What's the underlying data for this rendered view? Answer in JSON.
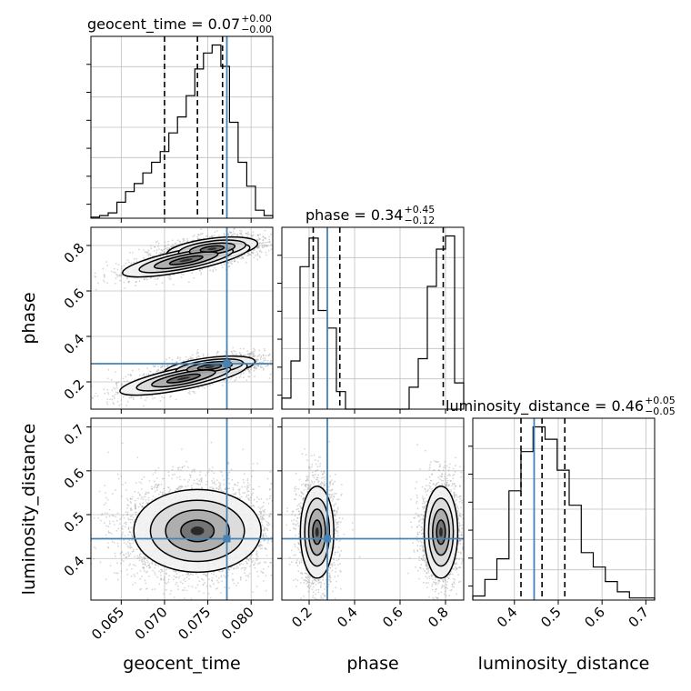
{
  "chart_data": {
    "type": "corner",
    "parameters": [
      "geocent_time",
      "phase",
      "luminosity_distance"
    ],
    "truths": {
      "geocent_time": 0.0772,
      "phase": 0.28,
      "luminosity_distance": 0.445
    },
    "colors": {
      "hist": "#000000",
      "truth": "#4682b4",
      "grid": "#c0c0c0",
      "scatter": "#8a8a8a",
      "dashed": "#000000"
    },
    "grid": true,
    "titles": [
      {
        "param": "geocent_time",
        "label": "geocent_time = 0.07",
        "sup": "+0.00",
        "sub": "−0.00"
      },
      {
        "param": "phase",
        "label": "phase = 0.34",
        "sup": "+0.45",
        "sub": "−0.12"
      },
      {
        "param": "luminosity_distance",
        "label": "luminosity_distance = 0.46",
        "sup": "+0.05",
        "sub": "−0.05"
      }
    ],
    "ranges": {
      "geocent_time": [
        0.0615,
        0.0825
      ],
      "phase": [
        0.08,
        0.88
      ],
      "luminosity_distance": [
        0.305,
        0.72
      ]
    },
    "ticks": {
      "geocent_time": [
        0.065,
        0.07,
        0.075,
        0.08
      ],
      "phase": [
        0.2,
        0.4,
        0.6,
        0.8
      ],
      "luminosity_distance": [
        0.3,
        0.4,
        0.5,
        0.6,
        0.7
      ]
    },
    "tick_labels": {
      "geocent_time": [
        "0.065",
        "0.070",
        "0.075",
        "0.080"
      ],
      "phase": [
        "0.2",
        "0.4",
        "0.6",
        "0.8"
      ],
      "luminosity_distance": [
        "0.3",
        "0.4",
        "0.5",
        "0.6",
        "0.7"
      ]
    },
    "quantiles": {
      "geocent_time": [
        0.07,
        0.0738,
        0.0767
      ],
      "phase": [
        0.218,
        0.335,
        0.79
      ],
      "luminosity_distance": [
        0.415,
        0.463,
        0.515
      ]
    },
    "histograms": {
      "geocent_time": {
        "edges": [
          0.0615,
          0.0625,
          0.0635,
          0.0645,
          0.0655,
          0.0665,
          0.0675,
          0.0685,
          0.0695,
          0.0705,
          0.0715,
          0.0725,
          0.0735,
          0.0745,
          0.0755,
          0.0765,
          0.0775,
          0.0785,
          0.0795,
          0.0805,
          0.0815,
          0.0825
        ],
        "counts": [
          0.4,
          1,
          2,
          6,
          10,
          13,
          17,
          21,
          25,
          32,
          38,
          46,
          56,
          62,
          65,
          57,
          36,
          21,
          12,
          3,
          1
        ]
      },
      "phase": {
        "edges": [
          0.08,
          0.12,
          0.16,
          0.2,
          0.24,
          0.28,
          0.32,
          0.36,
          0.4,
          0.44,
          0.48,
          0.52,
          0.56,
          0.6,
          0.64,
          0.68,
          0.72,
          0.76,
          0.8,
          0.84,
          0.88
        ],
        "counts": [
          5,
          22,
          65,
          78,
          45,
          37,
          8,
          0,
          0,
          0,
          0,
          0,
          0,
          0,
          10,
          23,
          56,
          73,
          79,
          12
        ]
      },
      "luminosity_distance": {
        "edges": [
          0.305,
          0.3325,
          0.36,
          0.3875,
          0.415,
          0.4425,
          0.47,
          0.4975,
          0.525,
          0.5525,
          0.58,
          0.6075,
          0.635,
          0.6625,
          0.69,
          0.72
        ],
        "counts": [
          2,
          10,
          20,
          53,
          72,
          84,
          78,
          63,
          46,
          23,
          16,
          9,
          4,
          1,
          1
        ]
      }
    },
    "blobs": {
      "phase_vs_geocent_time": [
        {
          "cx": 0.0752,
          "cy": 0.265,
          "sx": 0.0025,
          "sy": 0.023,
          "rho": 0.5,
          "n": 1400
        },
        {
          "cx": 0.0722,
          "cy": 0.215,
          "sx": 0.0035,
          "sy": 0.035,
          "rho": 0.75,
          "n": 900
        },
        {
          "cx": 0.0755,
          "cy": 0.785,
          "sx": 0.0025,
          "sy": 0.025,
          "rho": 0.45,
          "n": 1400
        },
        {
          "cx": 0.0725,
          "cy": 0.735,
          "sx": 0.0035,
          "sy": 0.035,
          "rho": 0.75,
          "n": 900
        }
      ],
      "luminosity_distance_vs_geocent_time": [
        {
          "cx": 0.0738,
          "cy": 0.463,
          "sx": 0.0035,
          "sy": 0.045,
          "rho": 0.0,
          "n": 3800
        }
      ],
      "luminosity_distance_vs_phase": [
        {
          "cx": 0.235,
          "cy": 0.46,
          "sx": 0.035,
          "sy": 0.05,
          "rho": 0.0,
          "n": 1900
        },
        {
          "cx": 0.78,
          "cy": 0.46,
          "sx": 0.035,
          "sy": 0.05,
          "rho": 0.0,
          "n": 1900
        }
      ]
    },
    "xlabels": [
      "geocent_time",
      "phase",
      "luminosity_distance"
    ],
    "ylabels": [
      "phase",
      "luminosity_distance"
    ]
  }
}
